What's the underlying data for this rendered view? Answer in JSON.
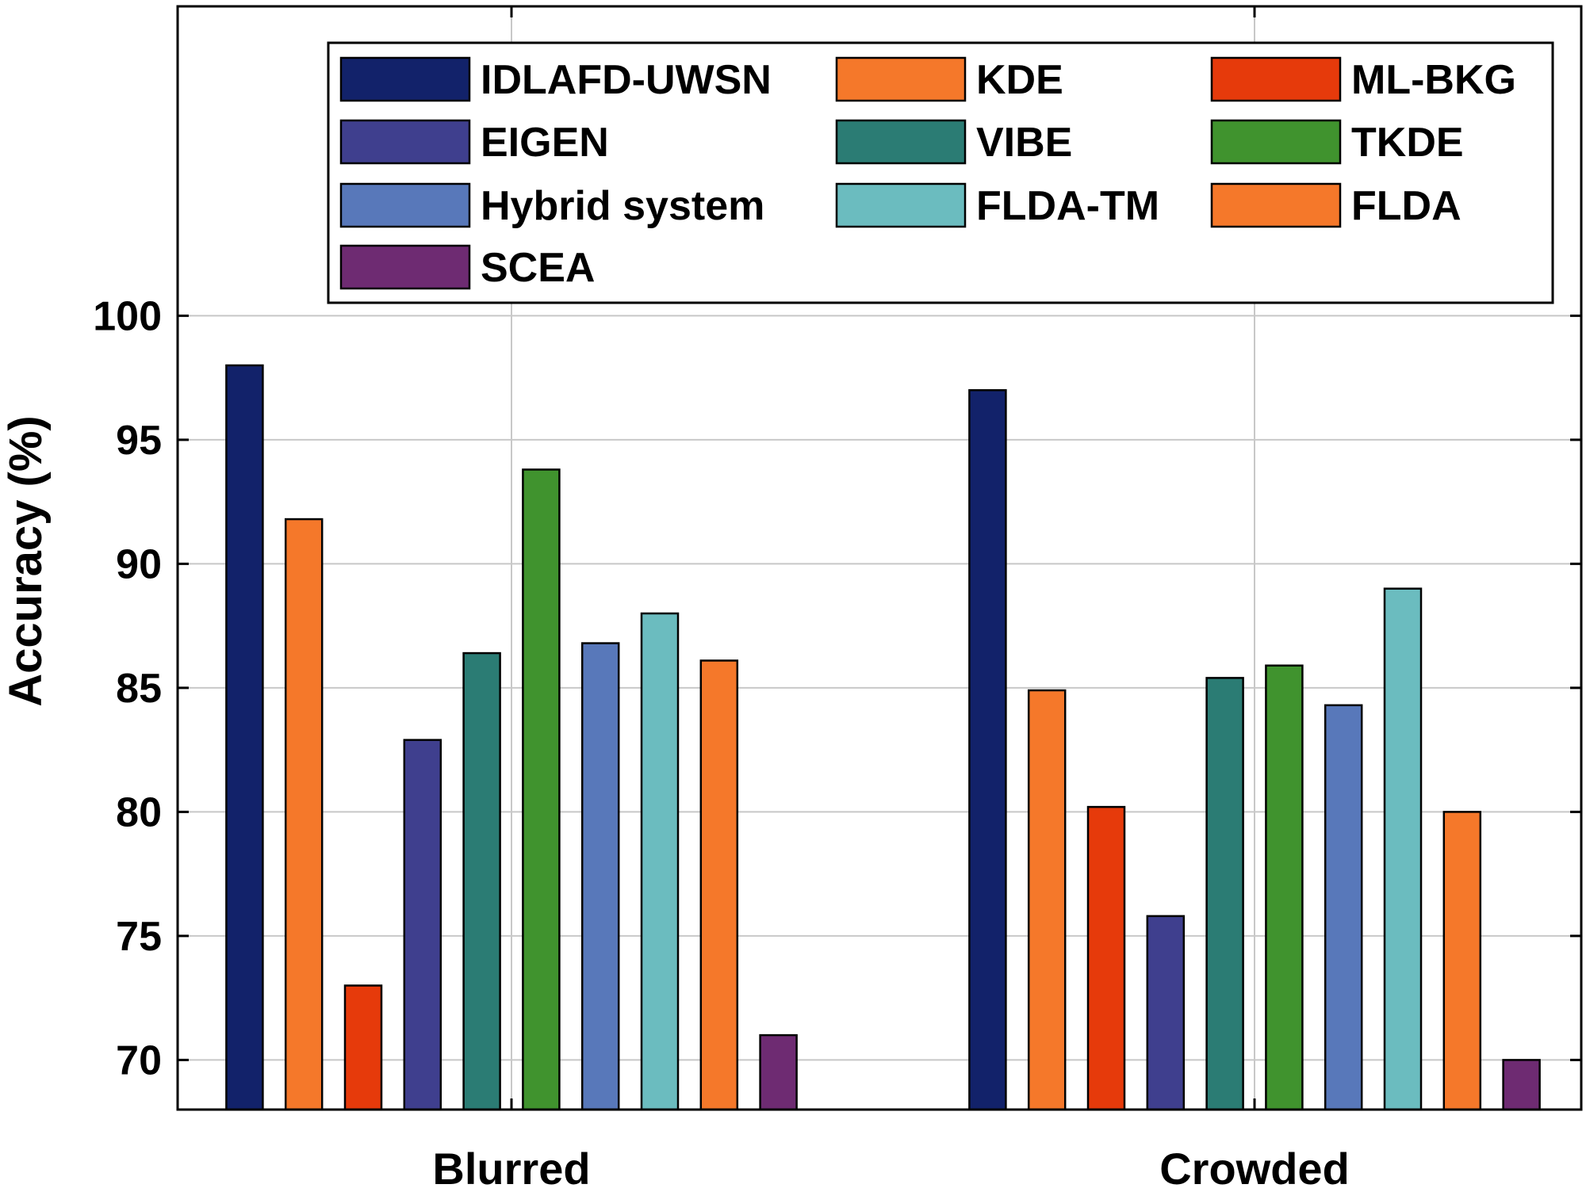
{
  "chart_data": {
    "type": "bar",
    "categories": [
      "Blurred",
      "Crowded"
    ],
    "ylabel": "Accuracy (%)",
    "xlabel": "",
    "ylim": [
      68,
      100
    ],
    "yticks": [
      70,
      75,
      80,
      85,
      90,
      95,
      100
    ],
    "grid": true,
    "legend_position": "top",
    "series": [
      {
        "name": "IDLAFD-UWSN",
        "color": "#12226a",
        "values": [
          98.0,
          97.0
        ]
      },
      {
        "name": "KDE",
        "color": "#f5782a",
        "values": [
          91.8,
          84.9
        ]
      },
      {
        "name": "ML-BKG",
        "color": "#e63a0b",
        "values": [
          73.0,
          80.2
        ]
      },
      {
        "name": "EIGEN",
        "color": "#3f3f8e",
        "values": [
          82.9,
          75.8
        ]
      },
      {
        "name": "VIBE",
        "color": "#2b7c74",
        "values": [
          86.4,
          85.4
        ]
      },
      {
        "name": "TKDE",
        "color": "#40932e",
        "values": [
          93.8,
          85.9
        ]
      },
      {
        "name": "Hybrid system",
        "color": "#5878ba",
        "values": [
          86.8,
          84.3
        ]
      },
      {
        "name": "FLDA-TM",
        "color": "#6bbcbf",
        "values": [
          88.0,
          89.0
        ]
      },
      {
        "name": "FLDA",
        "color": "#f5782a",
        "values": [
          86.1,
          80.0
        ]
      },
      {
        "name": "SCEA",
        "color": "#6e2b72",
        "values": [
          71.0,
          70.0
        ]
      }
    ]
  }
}
